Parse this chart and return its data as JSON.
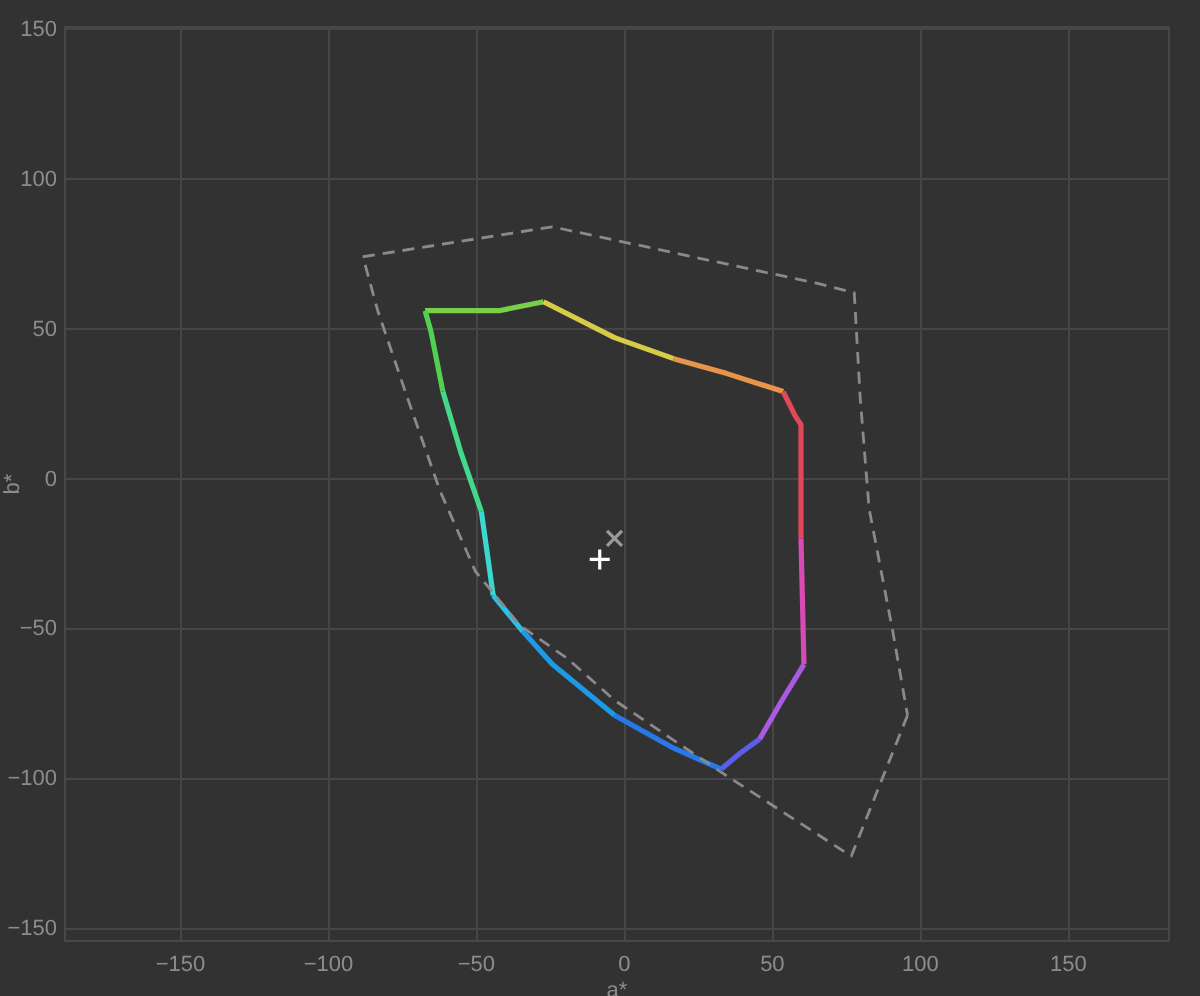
{
  "chart_data": {
    "type": "line",
    "xlabel": "a*",
    "ylabel": "b*",
    "xlim": [
      -189,
      184
    ],
    "ylim": [
      -154,
      151
    ],
    "xticks": [
      -150,
      -100,
      -50,
      0,
      50,
      100,
      150
    ],
    "yticks": [
      -150,
      -100,
      -50,
      0,
      50,
      100,
      150
    ],
    "grid": true,
    "series": [
      {
        "color": "#78cf48",
        "x": [
          -67,
          -42,
          -27
        ],
        "values": [
          56,
          56,
          59
        ]
      },
      {
        "color": "#d6cc48",
        "x": [
          -27,
          -3,
          17
        ],
        "values": [
          59,
          47,
          40
        ]
      },
      {
        "color": "#e8944a",
        "x": [
          17,
          35,
          54
        ],
        "values": [
          40,
          35,
          29
        ]
      },
      {
        "color": "#e2485a",
        "x": [
          54,
          58,
          60,
          60
        ],
        "values": [
          29,
          21,
          18,
          -20
        ]
      },
      {
        "color": "#d84ab4",
        "x": [
          60,
          61
        ],
        "values": [
          -20,
          -62
        ]
      },
      {
        "color": "#a85ae0",
        "x": [
          61,
          53,
          46
        ],
        "values": [
          -62,
          -75,
          -87
        ]
      },
      {
        "color": "#5a5ee8",
        "x": [
          46,
          39,
          33
        ],
        "values": [
          -87,
          -92,
          -97
        ]
      },
      {
        "color": "#2878e8",
        "x": [
          33,
          17,
          -3
        ],
        "values": [
          -97,
          -90,
          -79
        ]
      },
      {
        "color": "#1c9ae6",
        "x": [
          -3,
          -24,
          -34
        ],
        "values": [
          -79,
          -62,
          -51
        ]
      },
      {
        "color": "#2cc0e6",
        "x": [
          -34,
          -44
        ],
        "values": [
          -51,
          -39
        ]
      },
      {
        "color": "#3cd8d0",
        "x": [
          -44,
          -48
        ],
        "values": [
          -39,
          -11
        ]
      },
      {
        "color": "#44d88c",
        "x": [
          -48,
          -55,
          -61
        ],
        "values": [
          -11,
          9,
          29
        ]
      },
      {
        "color": "#52d052",
        "x": [
          -61,
          -65,
          -67
        ],
        "values": [
          29,
          49,
          56
        ]
      },
      {
        "color": "#8a8a8a",
        "line_style": "dashed",
        "x": [
          -88,
          -24,
          66,
          78,
          80,
          83,
          91,
          96
        ],
        "values": [
          74,
          84,
          65,
          62,
          27,
          -10,
          -51,
          -79
        ]
      },
      {
        "color": "#8a8a8a",
        "line_style": "dashed",
        "x": [
          96,
          77,
          33,
          -3,
          -19,
          -35,
          -50,
          -62,
          -73,
          -83,
          -88
        ],
        "values": [
          -79,
          -126,
          -98,
          -74,
          -60,
          -49,
          -31,
          -4,
          27,
          56,
          74
        ]
      },
      {
        "type": "scatter",
        "color": "#ffffff",
        "marker": "cross",
        "x": [
          -8
        ],
        "values": [
          -27
        ]
      },
      {
        "type": "scatter",
        "color": "#9a9a9a",
        "x": [
          -3
        ],
        "values": [
          -20
        ]
      }
    ]
  }
}
